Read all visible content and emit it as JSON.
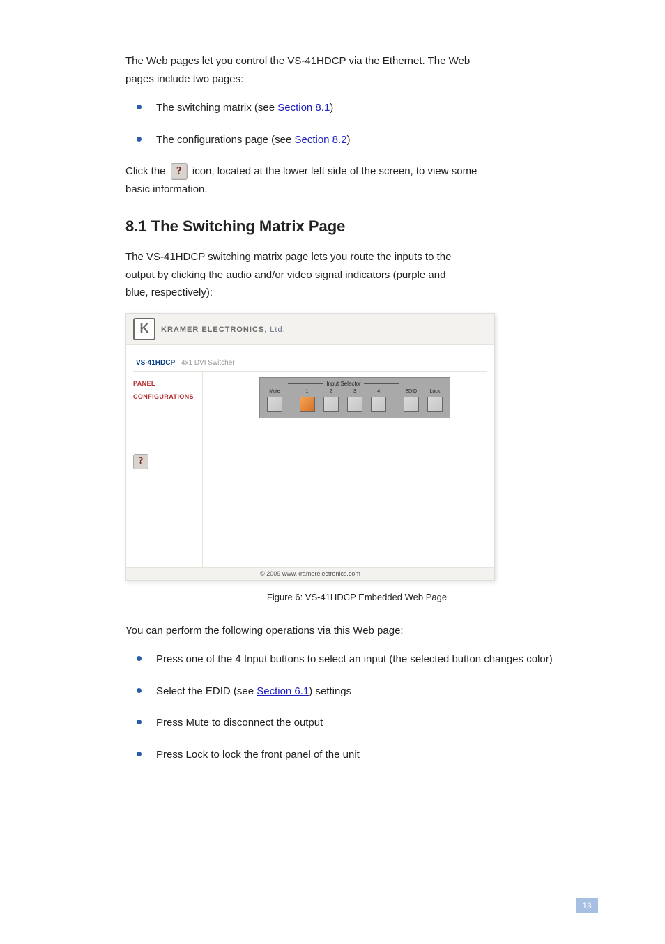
{
  "intro": {
    "line1": "The Web pages let you control the VS-41HDCP via the Ethernet. The Web",
    "line2": "pages include two pages:"
  },
  "top_bullets": [
    {
      "prefix": "The switching matrix (see ",
      "link": "Section 8.1",
      "suffix": ")"
    },
    {
      "prefix": "The configurations page (see ",
      "link": "Section 8.2",
      "suffix": ")"
    }
  ],
  "help_para": {
    "before": "Click the ",
    "icon_text": "?",
    "after": " icon, located at the lower left side of the screen, to view some",
    "line2": "basic information."
  },
  "section_heading": "8.1  The Switching Matrix Page",
  "section_intro": {
    "line1": "The VS-41HDCP switching matrix page lets you route the inputs to the",
    "line2": "output by clicking the audio and/or video signal indicators (purple and",
    "line3": "blue, respectively):"
  },
  "ui": {
    "logo_letter": "K",
    "brand": "KRAMER ELECTRONICS",
    "brand_ltd": ", Ltd.",
    "model": "VS-41HDCP",
    "model_desc": "4x1 DVI Switcher",
    "side_links": [
      "PANEL",
      "CONFIGURATIONS"
    ],
    "help_icon": "?",
    "selector_title": "Input Selector",
    "columns": [
      {
        "label": "Mute",
        "active": false
      },
      {
        "label": "1",
        "active": true
      },
      {
        "label": "2",
        "active": false
      },
      {
        "label": "3",
        "active": false
      },
      {
        "label": "4",
        "active": false
      },
      {
        "label": "EDID",
        "active": false
      },
      {
        "label": "Lock",
        "active": false
      }
    ],
    "footer": "© 2009 www.kramerelectronics.com"
  },
  "figure_caption": "Figure 6: VS-41HDCP Embedded Web Page",
  "actions_para": "You can perform the following operations via this Web page:",
  "action_bullets": [
    {
      "text": "Press one of the 4 Input buttons to select an input (the selected button changes color)"
    },
    {
      "prefix": "Select the EDID (see ",
      "link": "Section 6.1",
      "suffix": ") settings"
    },
    {
      "text": "Press Mute to disconnect the output"
    },
    {
      "text": "Press Lock to lock the front panel of the unit"
    }
  ],
  "page_number": "13",
  "colors": {
    "link": "#2020c0",
    "bullet": "#2b5ca6",
    "side_link": "#b52b2e",
    "selector_bg": "#a9a9a9",
    "btn_inactive_from": "#d9d9d9",
    "btn_inactive_to": "#c5c5c5",
    "btn_active_from": "#f3a45a",
    "btn_active_to": "#d86f1f",
    "page_num_bg": "#a6bfe2"
  }
}
